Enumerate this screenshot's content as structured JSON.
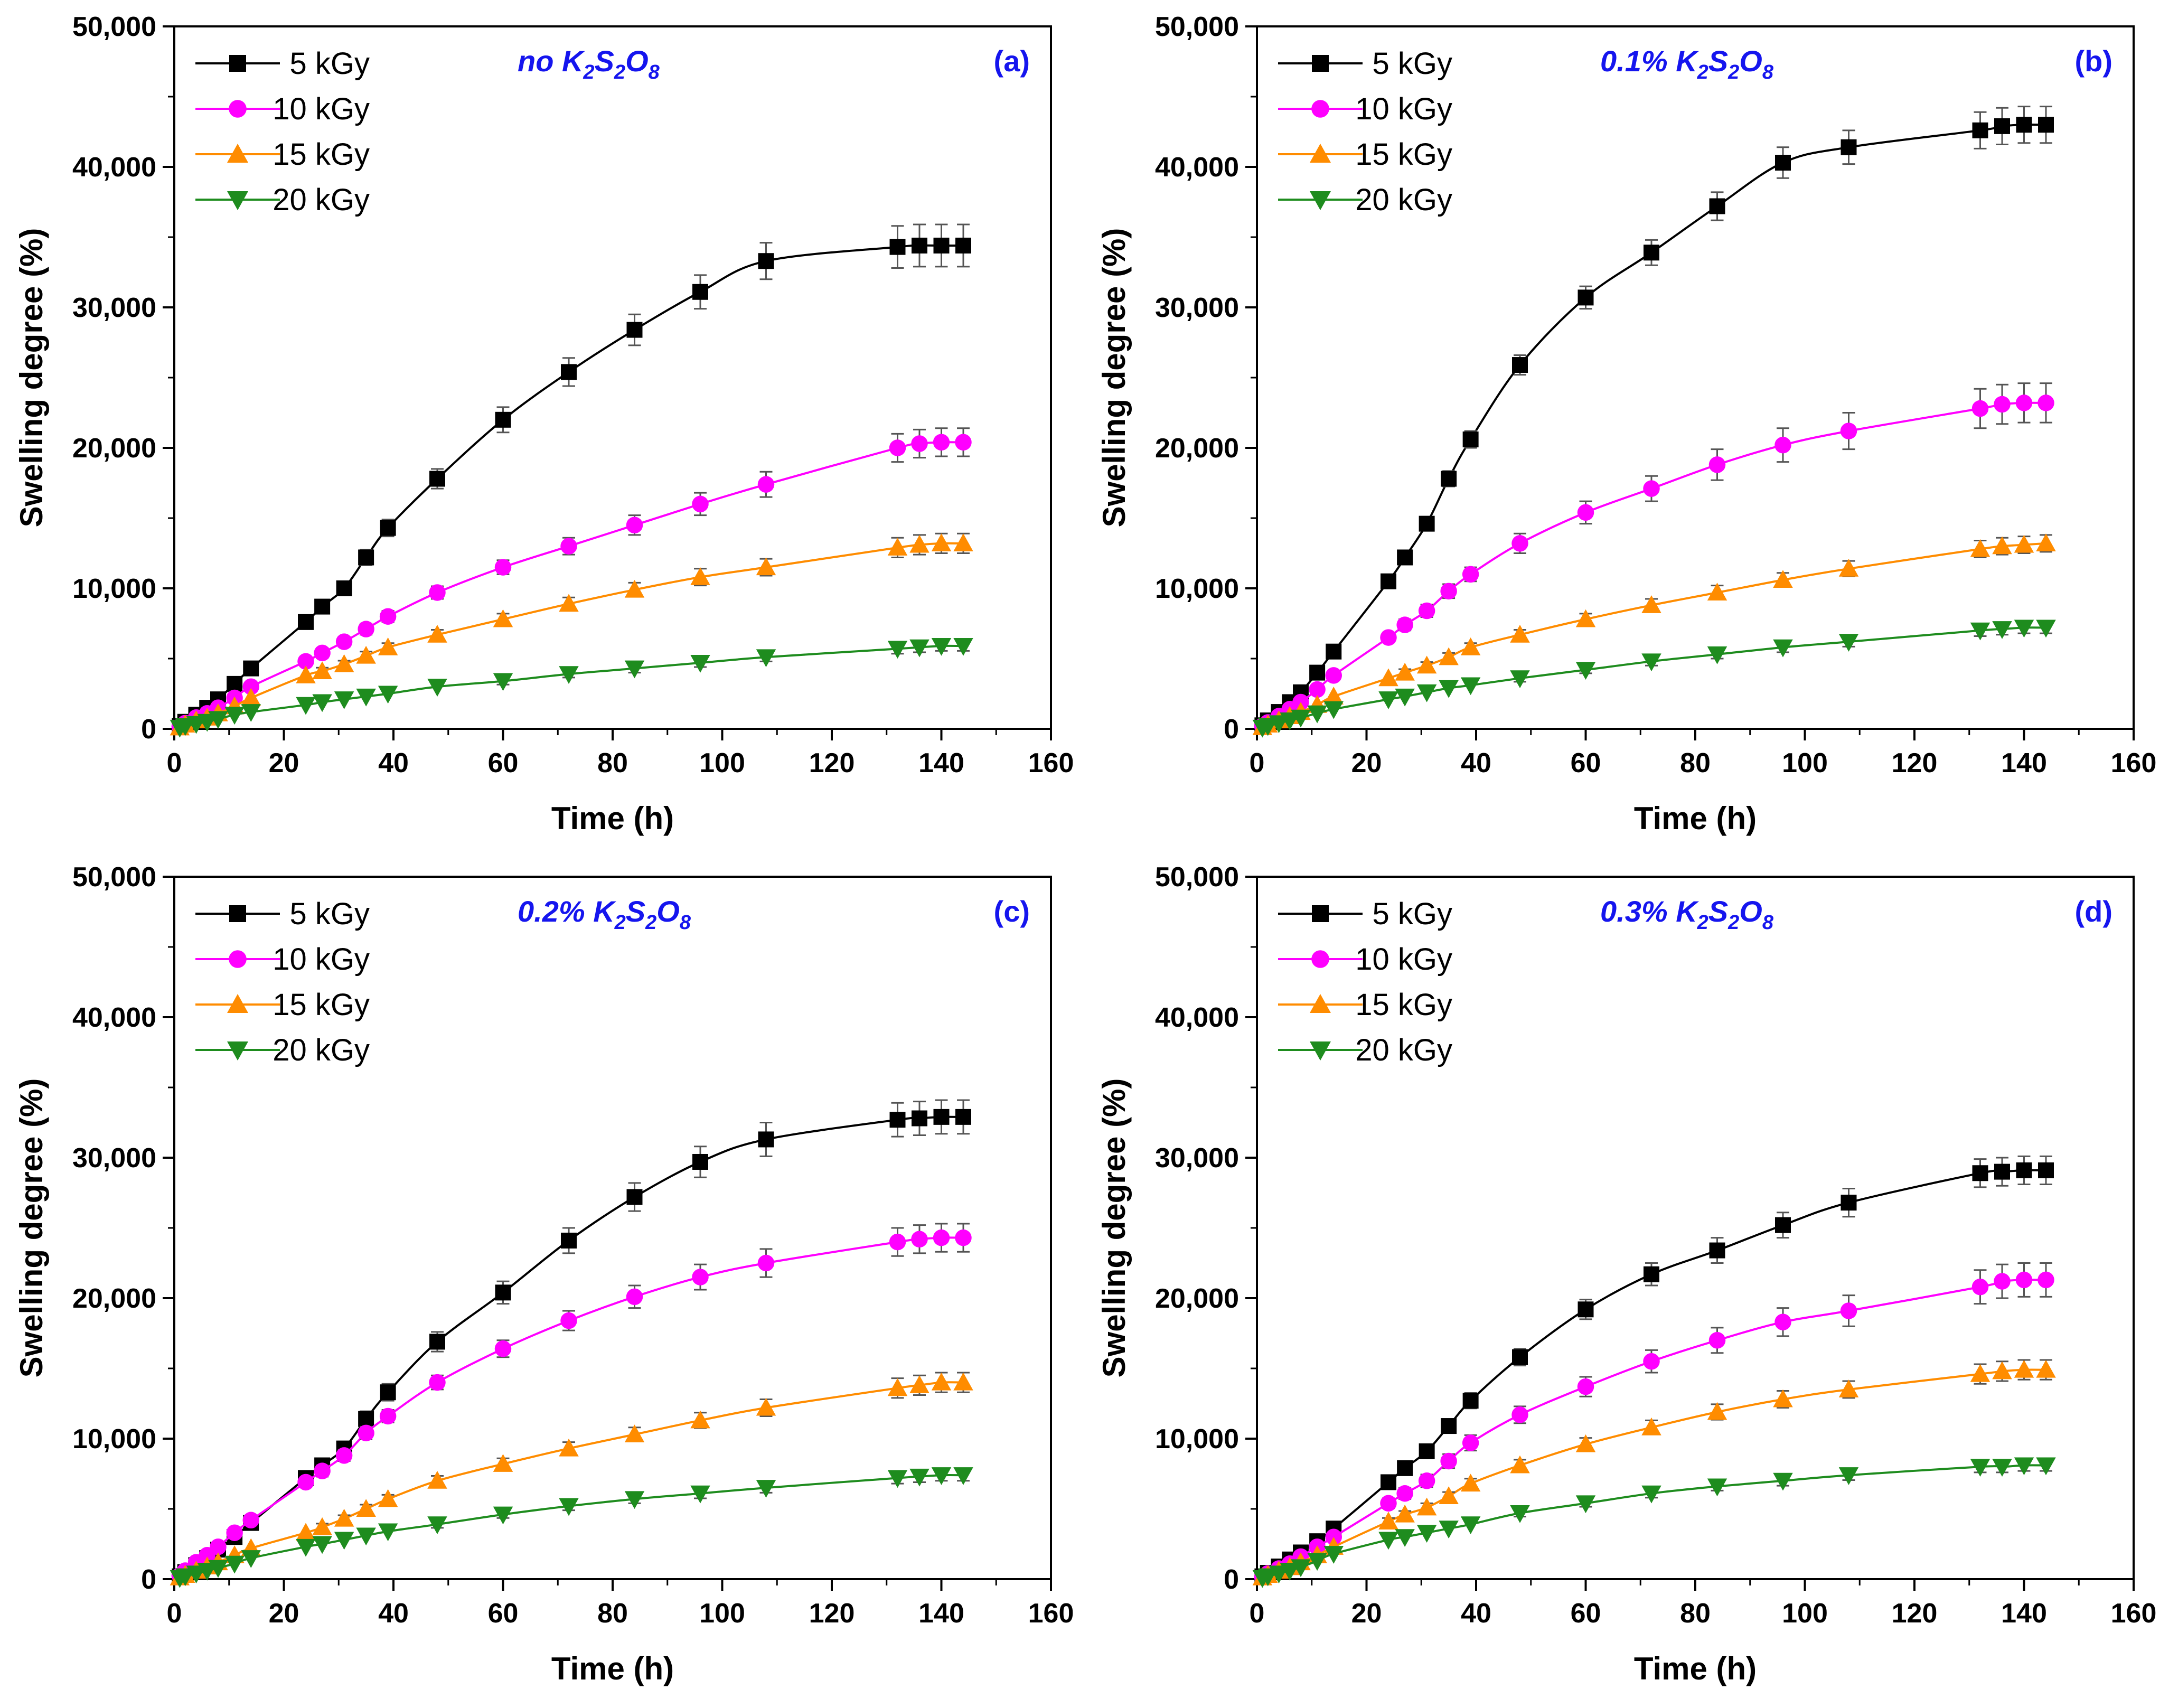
{
  "chart_data": [
    {
      "type": "line",
      "panel_label": "(a)",
      "condition": {
        "text": "no K",
        "sub1": "2",
        "mid": "S",
        "sub2": "2",
        "end": "O",
        "sub3": "8"
      },
      "xlabel": "Time (h)",
      "ylabel": "Swelling degree (%)",
      "xlim": [
        0,
        160
      ],
      "ylim": [
        0,
        50000
      ],
      "xticks": [
        "0",
        "20",
        "40",
        "60",
        "80",
        "100",
        "120",
        "140",
        "160"
      ],
      "yticks": [
        "0",
        "10,000",
        "20,000",
        "30,000",
        "40,000",
        "50,000"
      ],
      "x": [
        1,
        2,
        4,
        6,
        8,
        11,
        14,
        24,
        27,
        31,
        35,
        39,
        48,
        60,
        72,
        84,
        96,
        108,
        132,
        136,
        140,
        144
      ],
      "series": [
        {
          "name": "5 kGy",
          "color": "#000000",
          "marker": "square",
          "values": [
            200,
            500,
            1000,
            1500,
            2100,
            3200,
            4300,
            7600,
            8700,
            10000,
            12200,
            14300,
            17800,
            22000,
            25400,
            28400,
            31100,
            33300,
            34300,
            34400,
            34400,
            34400
          ],
          "errors": [
            50,
            80,
            150,
            200,
            250,
            300,
            350,
            400,
            450,
            500,
            550,
            600,
            700,
            900,
            1000,
            1100,
            1200,
            1300,
            1500,
            1500,
            1500,
            1500
          ]
        },
        {
          "name": "10 kGy",
          "color": "#ff00ff",
          "marker": "circle",
          "values": [
            150,
            400,
            800,
            1100,
            1500,
            2200,
            3000,
            4800,
            5400,
            6200,
            7100,
            8000,
            9700,
            11500,
            13000,
            14500,
            16000,
            17400,
            20000,
            20300,
            20400,
            20400
          ],
          "errors": [
            50,
            80,
            100,
            150,
            200,
            250,
            300,
            300,
            350,
            350,
            400,
            400,
            450,
            500,
            600,
            700,
            800,
            900,
            1000,
            1000,
            1000,
            1000
          ]
        },
        {
          "name": "15 kGy",
          "color": "#ff8c00",
          "marker": "triangle-up",
          "values": [
            100,
            300,
            600,
            800,
            1100,
            1600,
            2200,
            3800,
            4100,
            4600,
            5200,
            5800,
            6700,
            7800,
            8900,
            9900,
            10800,
            11500,
            12900,
            13100,
            13200,
            13200
          ],
          "errors": [
            50,
            80,
            100,
            100,
            150,
            150,
            200,
            200,
            250,
            250,
            300,
            300,
            350,
            400,
            450,
            500,
            600,
            600,
            700,
            700,
            700,
            700
          ]
        },
        {
          "name": "20 kGy",
          "color": "#1e8c1e",
          "marker": "triangle-down",
          "values": [
            80,
            200,
            350,
            500,
            700,
            1000,
            1200,
            1700,
            1900,
            2100,
            2300,
            2500,
            3000,
            3400,
            3900,
            4300,
            4700,
            5100,
            5700,
            5800,
            5900,
            5900
          ],
          "errors": [
            30,
            50,
            60,
            70,
            80,
            100,
            120,
            150,
            150,
            150,
            150,
            200,
            200,
            250,
            250,
            300,
            300,
            300,
            350,
            350,
            350,
            350
          ]
        }
      ],
      "legend_position": "top-left"
    },
    {
      "type": "line",
      "panel_label": "(b)",
      "condition": {
        "text": "0.1% K",
        "sub1": "2",
        "mid": "S",
        "sub2": "2",
        "end": "O",
        "sub3": "8"
      },
      "xlabel": "Time (h)",
      "ylabel": "Swelling degree (%)",
      "xlim": [
        0,
        160
      ],
      "ylim": [
        0,
        50000
      ],
      "xticks": [
        "0",
        "20",
        "40",
        "60",
        "80",
        "100",
        "120",
        "140",
        "160"
      ],
      "yticks": [
        "0",
        "10,000",
        "20,000",
        "30,000",
        "40,000",
        "50,000"
      ],
      "x": [
        1,
        2,
        4,
        6,
        8,
        11,
        14,
        24,
        27,
        31,
        35,
        39,
        48,
        60,
        72,
        84,
        96,
        108,
        132,
        136,
        140,
        144
      ],
      "series": [
        {
          "name": "5 kGy",
          "color": "#000000",
          "marker": "square",
          "values": [
            250,
            600,
            1200,
            1900,
            2600,
            4000,
            5500,
            10500,
            12200,
            14600,
            17800,
            20600,
            25900,
            30700,
            33900,
            37200,
            40300,
            41400,
            42600,
            42900,
            43000,
            43000
          ],
          "errors": [
            50,
            80,
            150,
            200,
            250,
            300,
            350,
            400,
            450,
            500,
            550,
            600,
            700,
            800,
            900,
            1000,
            1100,
            1200,
            1300,
            1300,
            1300,
            1300
          ]
        },
        {
          "name": "10 kGy",
          "color": "#ff00ff",
          "marker": "circle",
          "values": [
            200,
            450,
            900,
            1400,
            1900,
            2800,
            3800,
            6500,
            7400,
            8400,
            9800,
            11000,
            13200,
            15400,
            17100,
            18800,
            20200,
            21200,
            22800,
            23100,
            23200,
            23200
          ],
          "errors": [
            50,
            80,
            120,
            150,
            200,
            250,
            300,
            350,
            400,
            450,
            500,
            500,
            700,
            800,
            900,
            1100,
            1200,
            1300,
            1400,
            1400,
            1400,
            1400
          ]
        },
        {
          "name": "15 kGy",
          "color": "#ff8c00",
          "marker": "triangle-up",
          "values": [
            120,
            300,
            600,
            900,
            1200,
            1700,
            2300,
            3600,
            4000,
            4500,
            5100,
            5800,
            6700,
            7800,
            8800,
            9700,
            10600,
            11400,
            12800,
            13000,
            13100,
            13200
          ],
          "errors": [
            50,
            60,
            80,
            100,
            150,
            150,
            200,
            200,
            250,
            250,
            300,
            300,
            350,
            400,
            450,
            500,
            500,
            550,
            600,
            600,
            600,
            600
          ]
        },
        {
          "name": "20 kGy",
          "color": "#1e8c1e",
          "marker": "triangle-down",
          "values": [
            80,
            200,
            400,
            600,
            800,
            1100,
            1400,
            2100,
            2300,
            2600,
            2900,
            3100,
            3600,
            4200,
            4800,
            5300,
            5800,
            6200,
            7000,
            7100,
            7200,
            7200
          ],
          "errors": [
            30,
            50,
            60,
            80,
            100,
            120,
            150,
            150,
            150,
            200,
            200,
            200,
            250,
            250,
            300,
            300,
            350,
            350,
            400,
            400,
            400,
            400
          ]
        }
      ],
      "legend_position": "top-left"
    },
    {
      "type": "line",
      "panel_label": "(c)",
      "condition": {
        "text": "0.2% K",
        "sub1": "2",
        "mid": "S",
        "sub2": "2",
        "end": "O",
        "sub3": "8"
      },
      "xlabel": "Time (h)",
      "ylabel": "Swelling degree (%)",
      "xlim": [
        0,
        160
      ],
      "ylim": [
        0,
        50000
      ],
      "xticks": [
        "0",
        "20",
        "40",
        "60",
        "80",
        "100",
        "120",
        "140",
        "160"
      ],
      "yticks": [
        "0",
        "10,000",
        "20,000",
        "30,000",
        "40,000",
        "50,000"
      ],
      "x": [
        1,
        2,
        4,
        6,
        8,
        11,
        14,
        24,
        27,
        31,
        35,
        39,
        48,
        60,
        72,
        84,
        96,
        108,
        132,
        136,
        140,
        144
      ],
      "series": [
        {
          "name": "5 kGy",
          "color": "#000000",
          "marker": "square",
          "values": [
            200,
            500,
            1000,
            1500,
            2100,
            3000,
            4000,
            7200,
            8100,
            9300,
            11400,
            13300,
            16900,
            20400,
            24100,
            27200,
            29700,
            31300,
            32700,
            32800,
            32900,
            32900
          ],
          "errors": [
            50,
            80,
            150,
            200,
            250,
            300,
            350,
            400,
            450,
            500,
            550,
            600,
            700,
            800,
            900,
            1000,
            1100,
            1200,
            1200,
            1200,
            1200,
            1200
          ]
        },
        {
          "name": "10 kGy",
          "color": "#ff00ff",
          "marker": "circle",
          "values": [
            250,
            600,
            1200,
            1700,
            2300,
            3300,
            4200,
            6900,
            7700,
            8800,
            10400,
            11600,
            14000,
            16400,
            18400,
            20100,
            21500,
            22500,
            24000,
            24200,
            24300,
            24300
          ],
          "errors": [
            50,
            80,
            120,
            150,
            200,
            250,
            300,
            350,
            400,
            400,
            450,
            450,
            500,
            600,
            700,
            800,
            900,
            1000,
            1000,
            1000,
            1000,
            1000
          ]
        },
        {
          "name": "15 kGy",
          "color": "#ff8c00",
          "marker": "triangle-up",
          "values": [
            120,
            300,
            600,
            900,
            1200,
            1700,
            2200,
            3300,
            3700,
            4300,
            5000,
            5700,
            7000,
            8200,
            9300,
            10300,
            11300,
            12200,
            13600,
            13800,
            14000,
            14000
          ],
          "errors": [
            40,
            60,
            80,
            100,
            150,
            150,
            200,
            200,
            250,
            250,
            300,
            300,
            350,
            400,
            450,
            500,
            550,
            600,
            700,
            700,
            700,
            700
          ]
        },
        {
          "name": "20 kGy",
          "color": "#1e8c1e",
          "marker": "triangle-down",
          "values": [
            80,
            200,
            400,
            600,
            800,
            1100,
            1500,
            2300,
            2500,
            2800,
            3100,
            3400,
            3900,
            4600,
            5200,
            5700,
            6100,
            6500,
            7200,
            7300,
            7400,
            7400
          ],
          "errors": [
            30,
            50,
            60,
            80,
            100,
            120,
            150,
            150,
            150,
            200,
            200,
            200,
            250,
            250,
            300,
            300,
            350,
            350,
            400,
            400,
            400,
            400
          ]
        }
      ],
      "legend_position": "top-left"
    },
    {
      "type": "line",
      "panel_label": "(d)",
      "condition": {
        "text": "0.3% K",
        "sub1": "2",
        "mid": "S",
        "sub2": "2",
        "end": "O",
        "sub3": "8"
      },
      "xlabel": "Time (h)",
      "ylabel": "Swelling degree (%)",
      "xlim": [
        0,
        160
      ],
      "ylim": [
        0,
        50000
      ],
      "xticks": [
        "0",
        "20",
        "40",
        "60",
        "80",
        "100",
        "120",
        "140",
        "160"
      ],
      "yticks": [
        "0",
        "10,000",
        "20,000",
        "30,000",
        "40,000",
        "50,000"
      ],
      "x": [
        1,
        2,
        4,
        6,
        8,
        11,
        14,
        24,
        27,
        31,
        35,
        39,
        48,
        60,
        72,
        84,
        96,
        108,
        132,
        136,
        140,
        144
      ],
      "series": [
        {
          "name": "5 kGy",
          "color": "#000000",
          "marker": "square",
          "values": [
            200,
            450,
            900,
            1400,
            1900,
            2700,
            3600,
            6900,
            7900,
            9100,
            10900,
            12700,
            15800,
            19200,
            21700,
            23400,
            25200,
            26800,
            28900,
            29000,
            29100,
            29100
          ],
          "errors": [
            50,
            80,
            120,
            150,
            200,
            250,
            300,
            350,
            400,
            450,
            500,
            550,
            600,
            700,
            800,
            900,
            900,
            1000,
            1000,
            1000,
            1000,
            1000
          ]
        },
        {
          "name": "10 kGy",
          "color": "#ff00ff",
          "marker": "circle",
          "values": [
            150,
            400,
            750,
            1100,
            1600,
            2300,
            3000,
            5400,
            6100,
            7000,
            8400,
            9700,
            11700,
            13700,
            15500,
            17000,
            18300,
            19100,
            20800,
            21200,
            21300,
            21300
          ],
          "errors": [
            50,
            80,
            100,
            150,
            200,
            250,
            300,
            350,
            400,
            450,
            500,
            550,
            600,
            700,
            800,
            900,
            1000,
            1100,
            1200,
            1200,
            1200,
            1200
          ]
        },
        {
          "name": "15 kGy",
          "color": "#ff8c00",
          "marker": "triangle-up",
          "values": [
            120,
            300,
            600,
            850,
            1200,
            1700,
            2300,
            4100,
            4600,
            5100,
            5900,
            6800,
            8100,
            9600,
            10800,
            11900,
            12800,
            13500,
            14600,
            14800,
            14900,
            14900
          ],
          "errors": [
            40,
            60,
            80,
            100,
            150,
            150,
            200,
            250,
            250,
            300,
            300,
            350,
            400,
            450,
            500,
            550,
            600,
            600,
            700,
            700,
            700,
            700
          ]
        },
        {
          "name": "20 kGy",
          "color": "#1e8c1e",
          "marker": "triangle-down",
          "values": [
            80,
            200,
            400,
            600,
            850,
            1300,
            1800,
            2800,
            3000,
            3300,
            3600,
            3900,
            4700,
            5400,
            6100,
            6600,
            7000,
            7400,
            8000,
            8000,
            8100,
            8100
          ],
          "errors": [
            30,
            50,
            60,
            80,
            100,
            120,
            150,
            150,
            200,
            200,
            200,
            200,
            250,
            250,
            300,
            300,
            350,
            350,
            400,
            400,
            400,
            400
          ]
        }
      ],
      "legend_position": "top-left"
    }
  ]
}
